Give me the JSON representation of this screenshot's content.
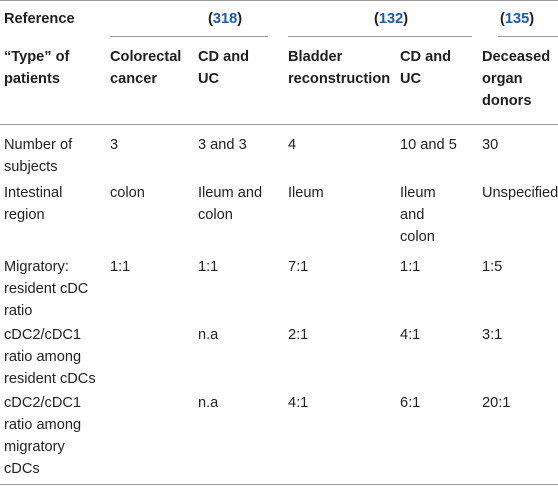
{
  "header": {
    "reference_label": "Reference",
    "refs": [
      {
        "open": "(",
        "num": "318",
        "close": ")"
      },
      {
        "open": "(",
        "num": "132",
        "close": ")"
      },
      {
        "open": "(",
        "num": "135",
        "close": ")"
      }
    ],
    "type_label_lines": [
      "“Type” of",
      "patients"
    ],
    "types": [
      [
        "Colorectal",
        "cancer"
      ],
      [
        "CD and",
        "UC"
      ],
      [
        "Bladder",
        "reconstruction"
      ],
      [
        "CD and",
        "UC"
      ],
      [
        "Deceased",
        "organ",
        "donors"
      ]
    ]
  },
  "rows": [
    {
      "label": [
        "Number of",
        "subjects"
      ],
      "values": [
        [
          "3"
        ],
        [
          "3 and 3"
        ],
        [
          "4"
        ],
        [
          "10 and 5"
        ],
        [
          "30"
        ]
      ]
    },
    {
      "label": [
        "Intestinal",
        "region"
      ],
      "values": [
        [
          "colon"
        ],
        [
          "Ileum and",
          "colon"
        ],
        [
          "Ileum"
        ],
        [
          "Ileum",
          "and",
          "colon"
        ],
        [
          "Unspecified"
        ]
      ]
    },
    {
      "label": [
        "Migratory:",
        "resident cDC",
        "ratio"
      ],
      "values": [
        [
          "1:1"
        ],
        [
          "1:1"
        ],
        [
          "7:1"
        ],
        [
          "1:1"
        ],
        [
          "1:5"
        ]
      ]
    },
    {
      "label": [
        "cDC2/cDC1",
        "ratio among",
        "resident cDCs"
      ],
      "values": [
        [
          ""
        ],
        [
          "n.a"
        ],
        [
          "2:1"
        ],
        [
          "4:1"
        ],
        [
          "3:1"
        ]
      ]
    },
    {
      "label": [
        "cDC2/cDC1",
        "ratio among",
        "migratory",
        "cDCs"
      ],
      "values": [
        [
          ""
        ],
        [
          "n.a"
        ],
        [
          "4:1"
        ],
        [
          "6:1"
        ],
        [
          "20:1"
        ]
      ]
    }
  ],
  "colors": {
    "text": "#222222",
    "reference_link": "#1e5aa8",
    "rule": "#9a9a9a"
  }
}
